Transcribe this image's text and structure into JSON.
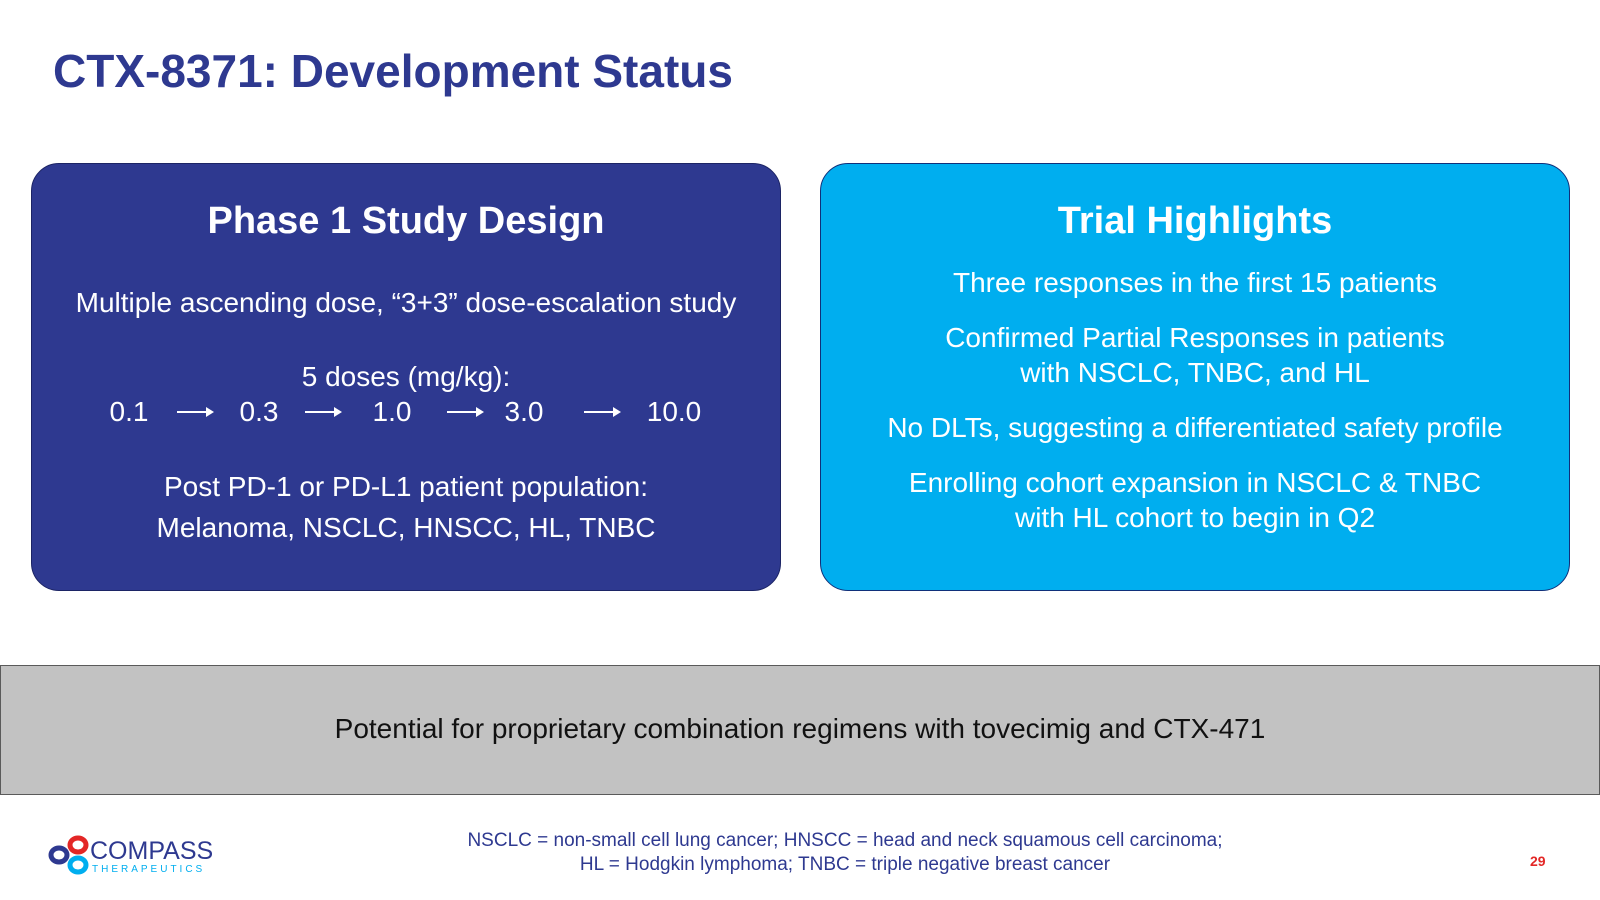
{
  "title": "CTX-8371: Development Status",
  "left_panel": {
    "heading": "Phase 1 Study Design",
    "line1": "Multiple ascending dose, “3+3” dose-escalation study",
    "doses_label": "5 doses (mg/kg):",
    "doses": [
      "0.1",
      "0.3",
      "1.0",
      "3.0",
      "10.0"
    ],
    "population_line1": "Post PD-1 or PD-L1 patient population:",
    "population_line2": "Melanoma, NSCLC, HNSCC, HL, TNBC"
  },
  "right_panel": {
    "heading": "Trial Highlights",
    "highlight1": "Three responses in the first 15 patients",
    "highlight2_line1": "Confirmed Partial Responses in patients",
    "highlight2_line2": "with NSCLC, TNBC, and HL",
    "highlight3": "No DLTs, suggesting a differentiated safety profile",
    "highlight4_line1": "Enrolling cohort expansion in NSCLC & TNBC",
    "highlight4_line2": "with HL cohort to begin in Q2"
  },
  "banner": {
    "text": "Potential for proprietary combination regimens with tovecimig and CTX-471"
  },
  "logo": {
    "name": "COMPASS",
    "subtitle": "THERAPEUTICS"
  },
  "footnote": {
    "line1": "NSCLC = non-small cell lung cancer; HNSCC = head and neck squamous cell carcinoma;",
    "line2": "HL = Hodgkin lymphoma; TNBC = triple negative breast cancer"
  },
  "page_number": "29",
  "colors": {
    "navy": "#2e3990",
    "cyan": "#00aeef",
    "banner_gray": "#c2c2c2",
    "page_number_red": "#e32726"
  }
}
